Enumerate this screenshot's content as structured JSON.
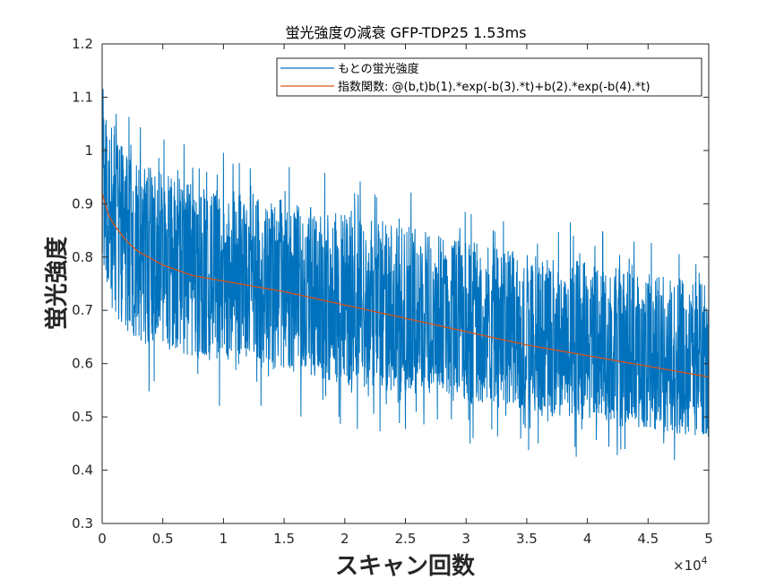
{
  "chart_data": {
    "type": "line",
    "title": "蛍光強度の減衰 GFP-TDP25 1.53ms",
    "xlabel": "スキャン回数",
    "ylabel": "蛍光強度",
    "x_exponent_label": "×10",
    "x_exponent_power": "4",
    "xlim": [
      0,
      50000
    ],
    "ylim": [
      0.3,
      1.2
    ],
    "x_tick_values": [
      0,
      5000,
      10000,
      15000,
      20000,
      25000,
      30000,
      35000,
      40000,
      45000,
      50000
    ],
    "x_tick_labels": [
      "0",
      "0.5",
      "1",
      "1.5",
      "2",
      "2.5",
      "3",
      "3.5",
      "4",
      "4.5",
      "5"
    ],
    "y_tick_values": [
      0.3,
      0.4,
      0.5,
      0.6,
      0.7,
      0.8,
      0.9,
      1.0,
      1.1,
      1.2
    ],
    "y_tick_labels": [
      "0.3",
      "0.4",
      "0.5",
      "0.6",
      "0.7",
      "0.8",
      "0.9",
      "1",
      "1.1",
      "1.2"
    ],
    "grid": false,
    "legend_position": "top-right",
    "series": [
      {
        "name": "もとの蛍光強度",
        "color": "#0072BD",
        "style": "noisy",
        "x": [
          0,
          500,
          1000,
          2000,
          3000,
          5000,
          7500,
          10000,
          15000,
          20000,
          25000,
          30000,
          35000,
          40000,
          45000,
          50000
        ],
        "y": [
          0.92,
          0.88,
          0.86,
          0.83,
          0.81,
          0.785,
          0.765,
          0.755,
          0.735,
          0.71,
          0.685,
          0.66,
          0.635,
          0.615,
          0.595,
          0.575
        ],
        "band_lower": [
          0.8,
          0.72,
          0.68,
          0.66,
          0.64,
          0.63,
          0.61,
          0.6,
          0.585,
          0.56,
          0.545,
          0.525,
          0.505,
          0.49,
          0.475,
          0.46
        ],
        "band_upper": [
          1.13,
          1.06,
          1.03,
          1.0,
          0.98,
          0.96,
          0.94,
          0.93,
          0.91,
          0.88,
          0.86,
          0.83,
          0.81,
          0.79,
          0.77,
          0.75
        ]
      },
      {
        "name": "指数関数: @(b,t)b(1).*exp(-b(3).*t)+b(2).*exp(-b(4).*t)",
        "color": "#D95319",
        "style": "line",
        "x": [
          0,
          500,
          1000,
          2000,
          3000,
          5000,
          7500,
          10000,
          15000,
          20000,
          25000,
          30000,
          35000,
          40000,
          45000,
          50000
        ],
        "y": [
          0.92,
          0.88,
          0.86,
          0.83,
          0.81,
          0.785,
          0.765,
          0.755,
          0.735,
          0.71,
          0.685,
          0.66,
          0.635,
          0.615,
          0.595,
          0.575
        ]
      }
    ]
  }
}
